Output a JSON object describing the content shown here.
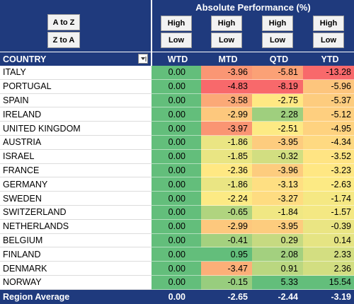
{
  "sort_buttons": [
    "A to Z",
    "Z to A"
  ],
  "title": "Absolute Performance (%)",
  "column_buttons": [
    [
      "High",
      "Low"
    ],
    [
      "High",
      "Low"
    ],
    [
      "High",
      "Low"
    ],
    [
      "High",
      "Low"
    ]
  ],
  "table": {
    "header": [
      "COUNTRY",
      "WTD",
      "MTD",
      "QTD",
      "YTD"
    ],
    "rows": [
      [
        "ITALY",
        "0.00",
        "-3.96",
        "-5.81",
        "-13.28"
      ],
      [
        "PORTUGAL",
        "0.00",
        "-4.83",
        "-8.19",
        "-5.96"
      ],
      [
        "SPAIN",
        "0.00",
        "-3.58",
        "-2.75",
        "-5.37"
      ],
      [
        "IRELAND",
        "0.00",
        "-2.99",
        "2.28",
        "-5.12"
      ],
      [
        "UNITED KINGDOM",
        "0.00",
        "-3.97",
        "-2.51",
        "-4.95"
      ],
      [
        "AUSTRIA",
        "0.00",
        "-1.86",
        "-3.95",
        "-4.34"
      ],
      [
        "ISRAEL",
        "0.00",
        "-1.85",
        "-0.32",
        "-3.52"
      ],
      [
        "FRANCE",
        "0.00",
        "-2.36",
        "-3.96",
        "-3.23"
      ],
      [
        "GERMANY",
        "0.00",
        "-1.86",
        "-3.13",
        "-2.63"
      ],
      [
        "SWEDEN",
        "0.00",
        "-2.24",
        "-3.27",
        "-1.74"
      ],
      [
        "SWITZERLAND",
        "0.00",
        "-0.65",
        "-1.84",
        "-1.57"
      ],
      [
        "NETHERLANDS",
        "0.00",
        "-2.99",
        "-3.95",
        "-0.39"
      ],
      [
        "BELGIUM",
        "0.00",
        "-0.41",
        "0.29",
        "0.14"
      ],
      [
        "FINLAND",
        "0.00",
        "0.95",
        "2.08",
        "2.33"
      ],
      [
        "DENMARK",
        "0.00",
        "-3.47",
        "0.91",
        "2.36"
      ],
      [
        "NORWAY",
        "0.00",
        "-0.15",
        "5.33",
        "15.54"
      ]
    ],
    "footer": [
      "Region Average",
      "0.00",
      "-2.65",
      "-2.44",
      "-3.19"
    ]
  }
}
